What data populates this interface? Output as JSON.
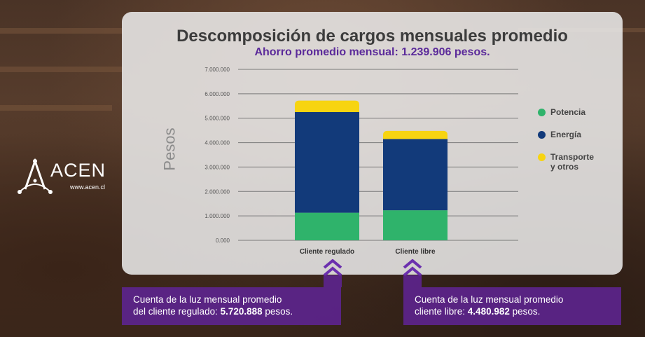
{
  "brand": {
    "name": "ACEN",
    "url": "www.acen.cl"
  },
  "chart_data": {
    "type": "bar",
    "stacked": true,
    "title": "Descomposición de cargos mensuales promedio",
    "subtitle_prefix": "Ahorro promedio mensual: ",
    "subtitle_value": "1.239.906",
    "subtitle_suffix": " pesos.",
    "ylabel": "Pesos",
    "ylim": [
      0,
      7000000
    ],
    "yticks": [
      0,
      1000000,
      2000000,
      3000000,
      4000000,
      5000000,
      6000000,
      7000000
    ],
    "ytick_labels": [
      "0.000",
      "1.000.000",
      "2.000.000",
      "3.000.000",
      "4.000.000",
      "5.000.000",
      "6.000.000",
      "7.000.000"
    ],
    "grid": true,
    "legend_position": "right",
    "categories": [
      "Cliente regulado",
      "Cliente libre"
    ],
    "series": [
      {
        "name": "Potencia",
        "color": "#2fb36b",
        "values": [
          1130000,
          1230000
        ]
      },
      {
        "name": "Energía",
        "color": "#123a7a",
        "values": [
          4120000,
          2920000
        ]
      },
      {
        "name": "Transporte y otros",
        "color": "#f7d411",
        "values": [
          470000,
          330000
        ]
      }
    ]
  },
  "legend": [
    {
      "lines": [
        "Potencia"
      ],
      "color": "#2fb36b"
    },
    {
      "lines": [
        "Energía"
      ],
      "color": "#123a7a"
    },
    {
      "lines": [
        "Transporte",
        "y otros"
      ],
      "color": "#f7d411"
    }
  ],
  "callouts": {
    "regulado": {
      "line1": "Cuenta de la luz mensual promedio",
      "line2_prefix": "del cliente regulado: ",
      "line2_value": "5.720.888",
      "line2_suffix": " pesos."
    },
    "libre": {
      "line1": "Cuenta de la luz mensual promedio",
      "line2_prefix": "cliente libre: ",
      "line2_value": "4.480.982",
      "line2_suffix": " pesos."
    }
  }
}
